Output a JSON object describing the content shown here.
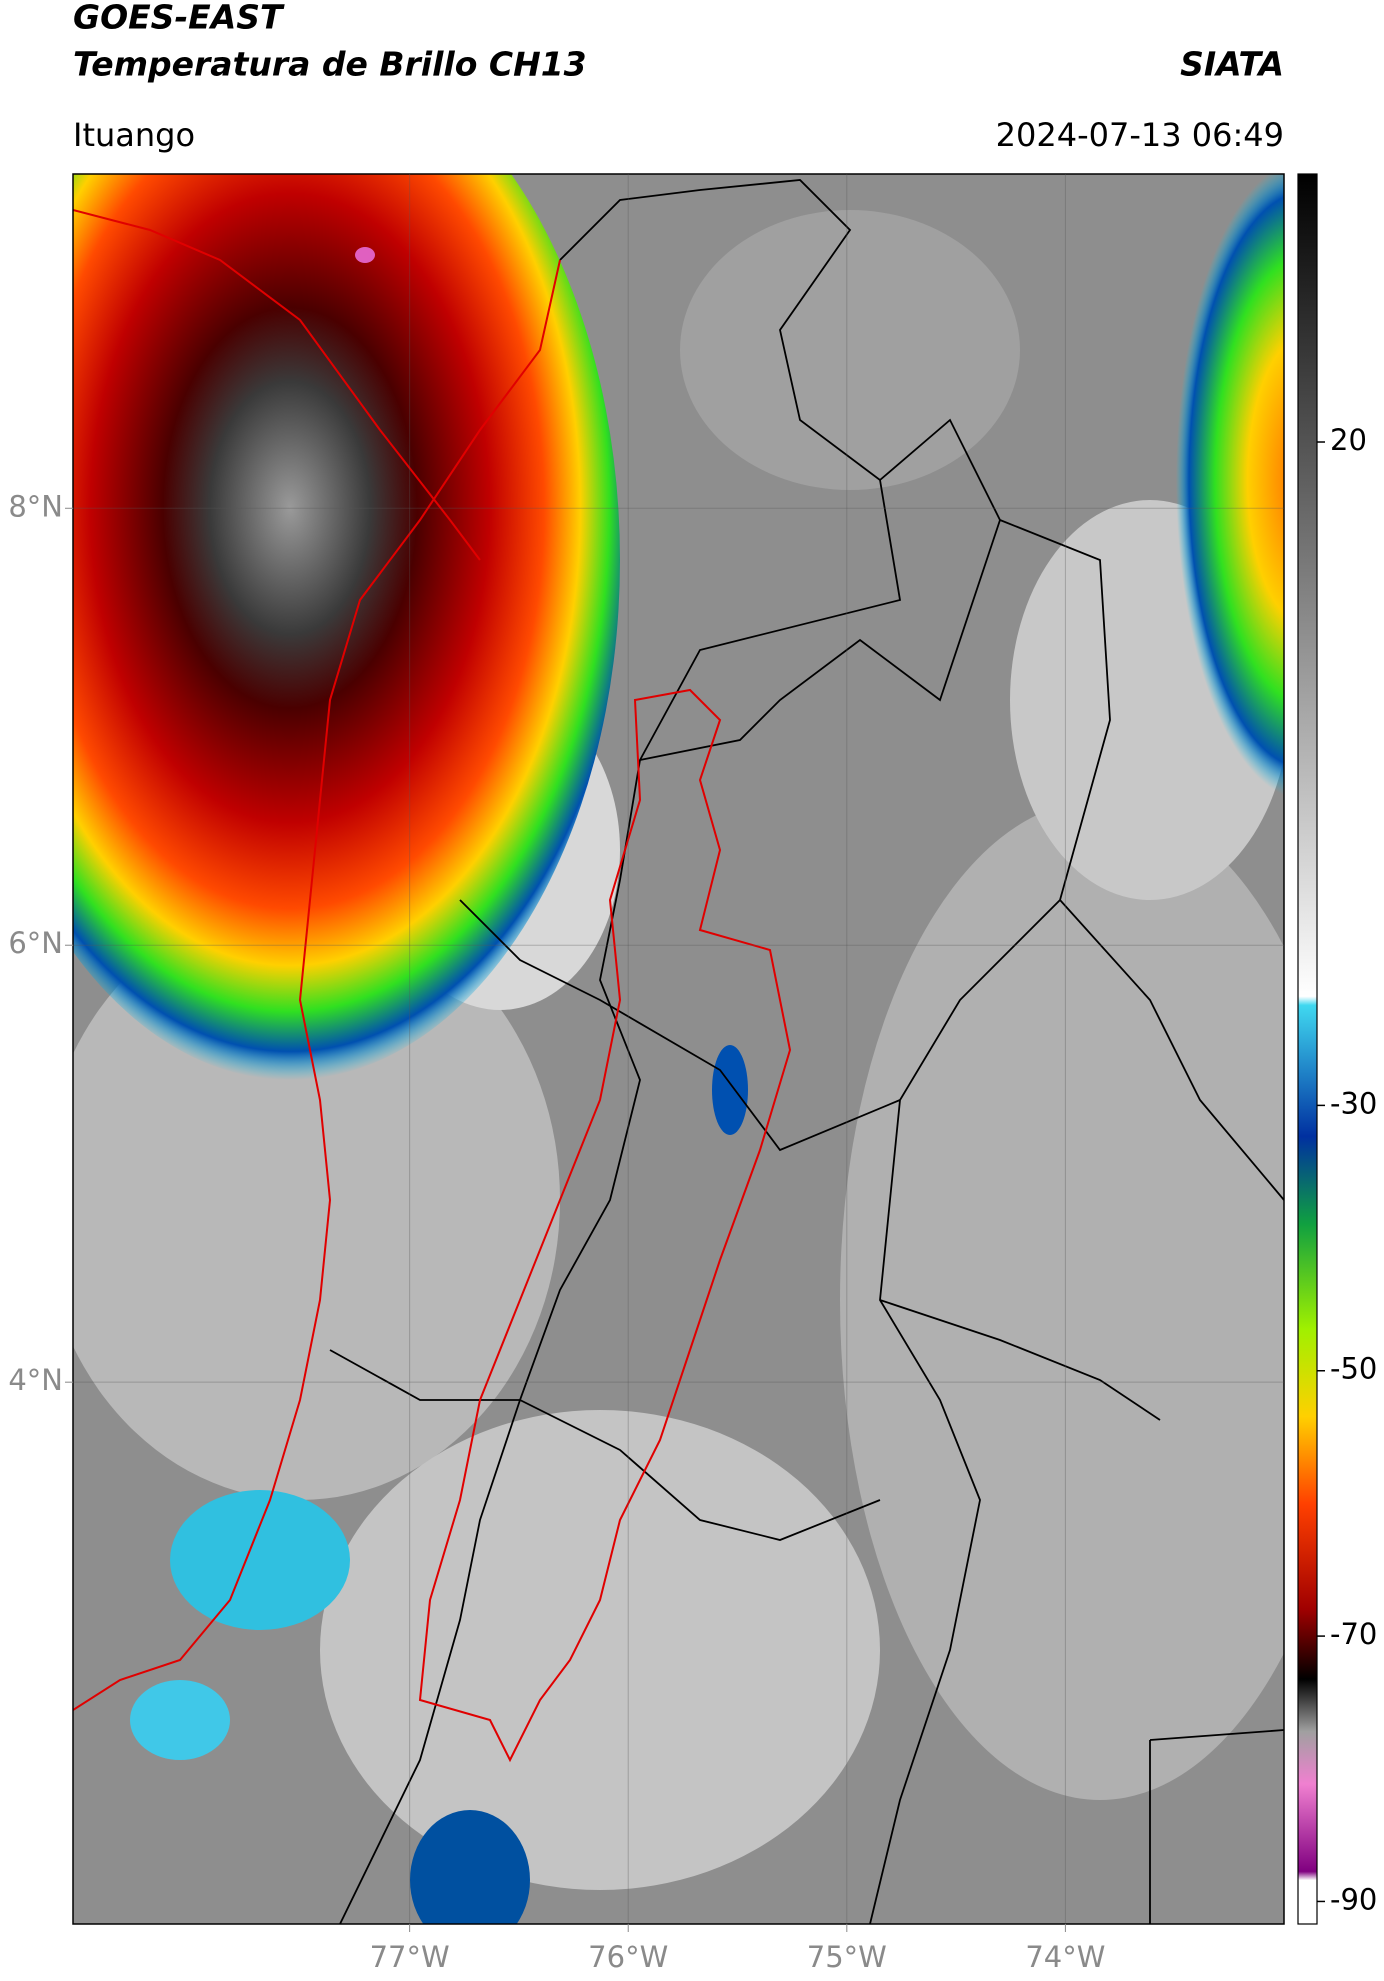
{
  "header": {
    "title": "GOES-EAST",
    "subtitle": "Temperatura de Brillo CH13",
    "source": "SIATA",
    "region": "Ituango",
    "timestamp": "2024-07-13 06:49"
  },
  "map": {
    "xlim": [
      -78.54,
      -73.0
    ],
    "ylim": [
      1.52,
      9.53
    ],
    "xticks": [
      {
        "value": -77,
        "label": "77°W"
      },
      {
        "value": -76,
        "label": "76°W"
      },
      {
        "value": -75,
        "label": "75°W"
      },
      {
        "value": -74,
        "label": "74°W"
      }
    ],
    "yticks": [
      {
        "value": 4,
        "label": "4°N"
      },
      {
        "value": 6,
        "label": "6°N"
      },
      {
        "value": 8,
        "label": "8°N"
      }
    ],
    "grid": true
  },
  "colorbar": {
    "lim": [
      -91.7,
      40.2
    ],
    "ticks": [
      -90,
      -70,
      -50,
      -30,
      20
    ]
  }
}
